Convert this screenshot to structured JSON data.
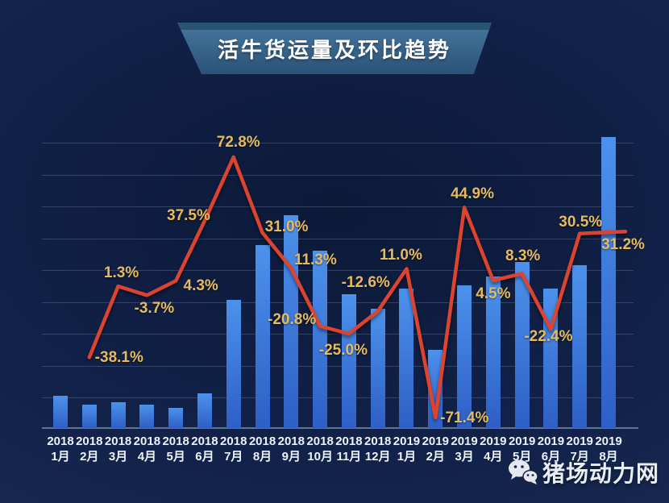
{
  "title": {
    "text": "活牛货运量及环比趋势"
  },
  "watermark": {
    "text": "猪场动力网",
    "icon": "wechat-icon"
  },
  "colors": {
    "bg_outer": "#1e2e54",
    "bg_inner": "#0c1a38",
    "banner_top": "#47789f",
    "banner_bottom": "#2b5278",
    "banner_bevel": "#1f4866",
    "bar_top": "#4c92ec",
    "bar_bottom": "#2e5fc6",
    "line": "#dd4430",
    "pct_label": "#e6ba5e",
    "axis_text": "#eef2f8",
    "gridline": "rgba(132,152,188,0.30)",
    "axis_line": "rgba(170,182,205,0.55)"
  },
  "chart_data": {
    "type": "bar+line",
    "title": "活牛货运量及环比趋势",
    "categories": [
      {
        "year": "2018",
        "month": "1月"
      },
      {
        "year": "2018",
        "month": "2月"
      },
      {
        "year": "2018",
        "month": "3月"
      },
      {
        "year": "2018",
        "month": "4月"
      },
      {
        "year": "2018",
        "month": "5月"
      },
      {
        "year": "2018",
        "month": "6月"
      },
      {
        "year": "2018",
        "month": "7月"
      },
      {
        "year": "2018",
        "month": "8月"
      },
      {
        "year": "2018",
        "month": "9月"
      },
      {
        "year": "2018",
        "month": "10月"
      },
      {
        "year": "2018",
        "month": "11月"
      },
      {
        "year": "2018",
        "month": "12月"
      },
      {
        "year": "2019",
        "month": "1月"
      },
      {
        "year": "2019",
        "month": "2月"
      },
      {
        "year": "2019",
        "month": "3月"
      },
      {
        "year": "2019",
        "month": "4月"
      },
      {
        "year": "2019",
        "month": "5月"
      },
      {
        "year": "2019",
        "month": "6月"
      },
      {
        "year": "2019",
        "month": "7月"
      },
      {
        "year": "2019",
        "month": "8月"
      }
    ],
    "series": [
      {
        "name": "活牛货运量",
        "type": "bar",
        "note": "relative heights estimated from pixels; chart shows no value axis",
        "values": [
          11,
          8,
          9,
          8,
          7,
          12,
          44,
          63,
          73,
          61,
          46,
          41,
          48,
          27,
          49,
          52,
          57,
          48,
          56,
          100
        ]
      },
      {
        "name": "环比",
        "type": "line",
        "unit": "%",
        "values": [
          null,
          -38.1,
          1.3,
          -3.7,
          4.3,
          37.5,
          72.8,
          31.0,
          11.3,
          -20.8,
          -25.0,
          -12.6,
          11.0,
          -71.4,
          44.9,
          4.5,
          8.3,
          -22.4,
          30.5,
          31.2
        ]
      }
    ],
    "line_label_offsets": [
      null,
      [
        37,
        1
      ],
      [
        4,
        -16
      ],
      [
        9,
        17
      ],
      [
        31,
        7
      ],
      [
        -20,
        -6
      ],
      [
        6,
        -18
      ],
      [
        30,
        -7
      ],
      [
        30,
        -10
      ],
      [
        -35,
        -8
      ],
      [
        -7,
        21
      ],
      [
        -15,
        -35
      ],
      [
        -7,
        -16
      ],
      [
        36,
        1
      ],
      [
        10,
        -16
      ],
      [
        0,
        17
      ],
      [
        1,
        -21
      ],
      [
        -3,
        10
      ],
      [
        1,
        -14
      ],
      [
        18,
        16
      ]
    ],
    "ylim_pct": [
      -77,
      80
    ],
    "grid": "horizontal",
    "legend": "none"
  }
}
